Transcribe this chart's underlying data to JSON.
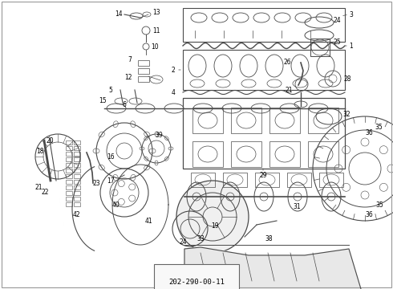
{
  "title": "202-290-00-11",
  "background_color": "#ffffff",
  "fig_width": 4.9,
  "fig_height": 3.6,
  "dpi": 100,
  "line_color": "#4a4a4a",
  "label_fontsize": 5.5
}
